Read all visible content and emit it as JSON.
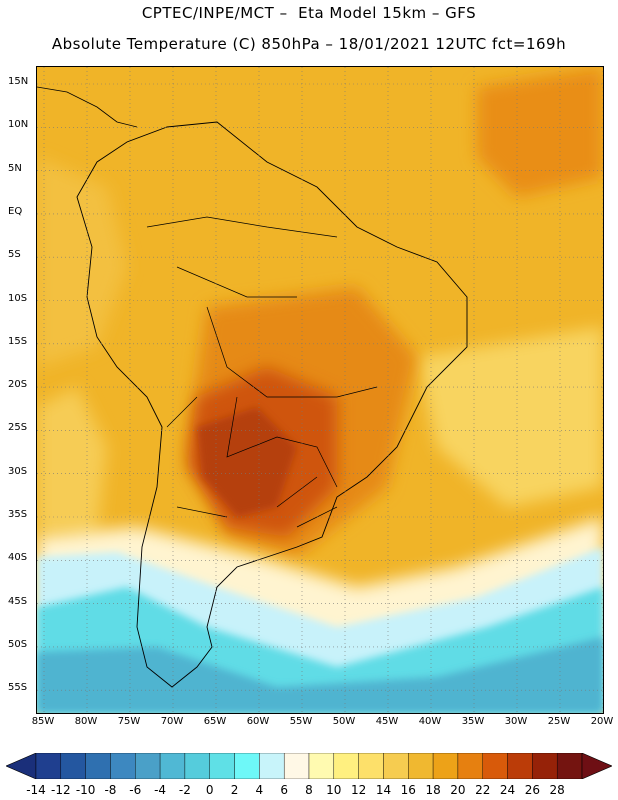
{
  "header": {
    "line1": "CPTEC/INPE/MCT –  Eta Model 15km – GFS",
    "line2": "Absolute Temperature (C) 850hPa – 18/01/2021 12UTC fct=169h"
  },
  "axes": {
    "lat_labels": [
      "15N",
      "10N",
      "5N",
      "EQ",
      "5S",
      "10S",
      "15S",
      "20S",
      "25S",
      "30S",
      "35S",
      "40S",
      "45S",
      "50S",
      "55S"
    ],
    "lon_labels": [
      "85W",
      "80W",
      "75W",
      "70W",
      "65W",
      "60W",
      "55W",
      "50W",
      "45W",
      "40W",
      "35W",
      "30W",
      "25W",
      "20W"
    ]
  },
  "colorbar": {
    "labels": [
      "-14",
      "-12",
      "-10",
      "-8",
      "-6",
      "-4",
      "-2",
      "0",
      "2",
      "4",
      "6",
      "8",
      "10",
      "12",
      "14",
      "16",
      "18",
      "20",
      "22",
      "24",
      "26",
      "28"
    ],
    "under_color": "#1a2f7a",
    "over_color": "#6e0f14",
    "colors": [
      "#1f3f8f",
      "#2457a0",
      "#2f70b0",
      "#3d88c0",
      "#4aa0c8",
      "#50b8d4",
      "#55ccdc",
      "#5fe0e6",
      "#6ef8f8",
      "#c8f4fa",
      "#fff8e6",
      "#fffab0",
      "#fff080",
      "#fde06a",
      "#f6cc50",
      "#f0b830",
      "#eda218",
      "#e68010",
      "#d85a0a",
      "#bb3c08",
      "#962208",
      "#741410"
    ]
  },
  "chart_data": {
    "type": "heatmap",
    "title": "Absolute Temperature (C) 850hPa",
    "source": "CPTEC/INPE/MCT Eta Model 15km - GFS",
    "valid": "18/01/2021 12UTC fct=169h",
    "x_range": [
      -85,
      -20
    ],
    "y_range": [
      -58,
      16
    ],
    "units": "C",
    "color_levels": [
      -14,
      -12,
      -10,
      -8,
      -6,
      -4,
      -2,
      0,
      2,
      4,
      6,
      8,
      10,
      12,
      14,
      16,
      18,
      20,
      22,
      24,
      26,
      28
    ]
  }
}
